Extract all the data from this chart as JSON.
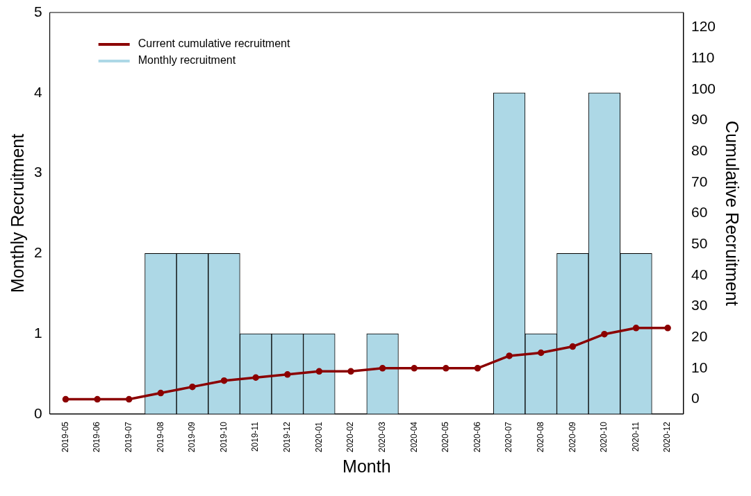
{
  "chart_data": {
    "type": "bar",
    "xlabel": "Month",
    "ylabel": "Monthly Recruitment",
    "y2label": "Cumulative Recruitment",
    "categories": [
      "2019-05",
      "2019-06",
      "2019-07",
      "2019-08",
      "2019-09",
      "2019-10",
      "2019-11",
      "2019-12",
      "2020-01",
      "2020-02",
      "2020-03",
      "2020-04",
      "2020-05",
      "2020-06",
      "2020-07",
      "2020-08",
      "2020-09",
      "2020-10",
      "2020-11",
      "2020-12"
    ],
    "series": [
      {
        "name": "Current cumulative recruitment",
        "type": "line",
        "axis": "y2",
        "color": "#8b0000",
        "values": [
          0,
          0,
          0,
          2,
          4,
          6,
          7,
          8,
          9,
          9,
          10,
          10,
          10,
          10,
          14,
          15,
          17,
          21,
          23,
          23
        ]
      },
      {
        "name": "Monthly recruitment",
        "color": "#add8e6",
        "values": [
          0,
          0,
          0,
          2,
          2,
          2,
          1,
          1,
          1,
          0,
          1,
          0,
          0,
          0,
          4,
          1,
          2,
          4,
          2,
          0
        ]
      }
    ],
    "ylim": [
      0,
      5
    ],
    "yticks": [
      0,
      1,
      2,
      3,
      4,
      5
    ],
    "y2lim": [
      -4.8,
      124.8
    ],
    "y2ticks": [
      0,
      10,
      20,
      30,
      40,
      50,
      60,
      70,
      80,
      90,
      100,
      110,
      120
    ],
    "legend": "top left",
    "marker": "circle",
    "grid": false
  }
}
